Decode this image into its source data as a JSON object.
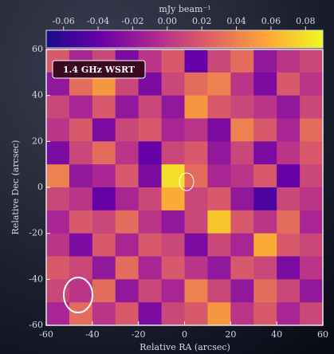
{
  "chart_data": {
    "type": "heatmap",
    "title": "1.4 GHz WSRT",
    "colorbar_label": "mJy beam⁻¹",
    "xlabel": "Relative RA (arcsec)",
    "ylabel": "Relative Dec (arcsec)",
    "xlim": [
      -60,
      60
    ],
    "ylim": [
      -60,
      60
    ],
    "xticks": [
      -60,
      -40,
      -20,
      0,
      20,
      40,
      60
    ],
    "yticks": [
      -60,
      -40,
      -20,
      0,
      20,
      40,
      60
    ],
    "clim": [
      -0.07,
      0.09
    ],
    "cticks": [
      -0.06,
      -0.04,
      -0.02,
      {
        "value": 0,
        "label": "0.00"
      },
      0.02,
      0.04,
      0.06,
      0.08
    ],
    "colormap": [
      "#1a0b8c",
      "#6a00a8",
      "#b12a90",
      "#e16462",
      "#fca636",
      "#f0f921"
    ],
    "z": [
      [
        0.02,
        -0.01,
        0.01,
        -0.03,
        0.0,
        0.02,
        -0.04,
        0.01,
        0.03,
        -0.02,
        0.0,
        0.01
      ],
      [
        -0.02,
        0.03,
        0.05,
        0.01,
        -0.03,
        0.01,
        0.03,
        0.04,
        0.0,
        -0.03,
        0.02,
        0.0
      ],
      [
        0.01,
        -0.01,
        0.02,
        -0.02,
        0.01,
        -0.02,
        0.05,
        0.02,
        0.01,
        0.0,
        -0.02,
        0.01
      ],
      [
        0.0,
        0.02,
        -0.03,
        0.01,
        0.02,
        -0.01,
        0.0,
        -0.03,
        0.04,
        0.02,
        -0.01,
        0.03
      ],
      [
        -0.03,
        0.01,
        0.03,
        0.0,
        -0.04,
        0.01,
        0.02,
        -0.02,
        0.01,
        -0.03,
        0.0,
        0.02
      ],
      [
        0.04,
        -0.02,
        -0.01,
        0.02,
        -0.03,
        0.08,
        0.03,
        -0.01,
        0.0,
        0.02,
        -0.04,
        0.01
      ],
      [
        0.01,
        0.0,
        -0.04,
        -0.01,
        0.01,
        0.06,
        0.01,
        0.02,
        -0.02,
        -0.05,
        0.01,
        0.0
      ],
      [
        -0.01,
        0.02,
        0.01,
        0.03,
        0.0,
        -0.02,
        0.01,
        0.07,
        0.02,
        0.0,
        0.03,
        -0.01
      ],
      [
        0.0,
        -0.03,
        0.02,
        -0.01,
        0.02,
        0.01,
        -0.03,
        0.01,
        -0.01,
        0.06,
        0.02,
        0.01
      ],
      [
        0.02,
        0.01,
        -0.02,
        0.03,
        -0.01,
        0.02,
        0.0,
        -0.02,
        0.02,
        0.01,
        -0.03,
        0.0
      ],
      [
        0.01,
        0.0,
        0.03,
        -0.02,
        0.01,
        -0.01,
        0.04,
        0.01,
        -0.02,
        0.03,
        0.01,
        -0.02
      ],
      [
        -0.01,
        0.03,
        0.0,
        0.02,
        -0.03,
        0.01,
        0.02,
        0.05,
        0.0,
        0.02,
        -0.01,
        0.01
      ]
    ]
  }
}
